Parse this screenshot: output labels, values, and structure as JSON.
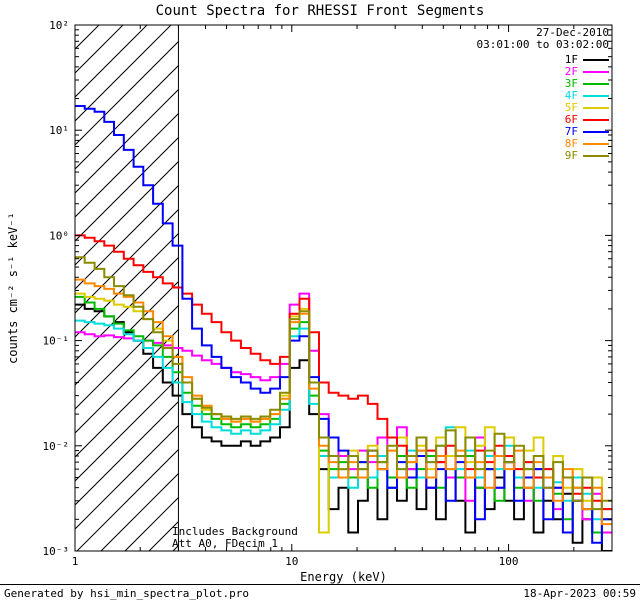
{
  "window": {
    "title": "Count Spectra for RHESSI Front Segments"
  },
  "header": {
    "date": "27-Dec-2010",
    "time_range": "03:01:00 to 03:02:00"
  },
  "annotations": {
    "background": "Includes Background",
    "attenuator": "Att A0, FDecim 1"
  },
  "footer": {
    "generator": "Generated by hsi_min_spectra_plot.pro",
    "timestamp": "18-Apr-2023 00:59"
  },
  "axes": {
    "xlabel": "Energy (keV)",
    "ylabel": "counts cm⁻² s⁻¹ keV⁻¹",
    "xticks": [
      {
        "value": 1,
        "label": "1"
      },
      {
        "value": 10,
        "label": "10"
      },
      {
        "value": 100,
        "label": "100"
      }
    ],
    "yticks": [
      {
        "value": 0.001,
        "label": "10⁻³"
      },
      {
        "value": 0.01,
        "label": "10⁻²"
      },
      {
        "value": 0.1,
        "label": "10⁻¹"
      },
      {
        "value": 1,
        "label": "10⁰"
      },
      {
        "value": 10,
        "label": "10¹"
      },
      {
        "value": 100,
        "label": "10²"
      }
    ]
  },
  "chart_data": {
    "type": "line",
    "subtype": "step-histogram",
    "scale": "log-log",
    "title": "Count Spectra for RHESSI Front Segments",
    "xlabel": "Energy (keV)",
    "ylabel": "counts cm⁻² s⁻¹ keV⁻¹",
    "xlim": [
      1,
      300
    ],
    "ylim": [
      0.001,
      100
    ],
    "grid": false,
    "legend_position": "top-right",
    "hatched_region_kev": [
      1,
      3
    ],
    "bin_edges_kev": [
      1.0,
      1.109,
      1.231,
      1.365,
      1.514,
      1.679,
      1.863,
      2.066,
      2.292,
      2.542,
      2.82,
      3.128,
      3.47,
      3.849,
      4.269,
      4.735,
      5.252,
      5.826,
      6.462,
      7.168,
      7.951,
      8.819,
      9.782,
      10.85,
      12.035,
      13.349,
      14.807,
      16.424,
      18.218,
      20.207,
      22.414,
      24.862,
      27.577,
      30.589,
      33.93,
      37.635,
      41.745,
      46.305,
      51.362,
      56.971,
      63.193,
      70.094,
      77.749,
      86.24,
      95.659,
      106.104,
      117.687,
      130.536,
      144.788,
      160.596,
      178.13,
      197.578,
      219.15,
      243.077,
      269.617,
      299.0
    ],
    "series": [
      {
        "name": "1F",
        "color": "#000000",
        "values": [
          0.22,
          0.2,
          0.19,
          0.17,
          0.15,
          0.12,
          0.1,
          0.075,
          0.055,
          0.04,
          0.03,
          0.02,
          0.015,
          0.012,
          0.011,
          0.01,
          0.01,
          0.011,
          0.01,
          0.011,
          0.012,
          0.015,
          0.055,
          0.065,
          0.02,
          0.006,
          0.0025,
          0.004,
          0.0015,
          0.003,
          0.005,
          0.002,
          0.004,
          0.003,
          0.006,
          0.0025,
          0.004,
          0.002,
          0.005,
          0.003,
          0.0015,
          0.004,
          0.0025,
          0.005,
          0.003,
          0.002,
          0.004,
          0.0015,
          0.003,
          0.002,
          0.0035,
          0.0012,
          0.002,
          0.0015,
          0.001
        ]
      },
      {
        "name": "2F",
        "color": "#ff00ff",
        "values": [
          0.12,
          0.115,
          0.11,
          0.112,
          0.108,
          0.105,
          0.1,
          0.1,
          0.095,
          0.09,
          0.085,
          0.08,
          0.072,
          0.065,
          0.06,
          0.055,
          0.05,
          0.048,
          0.045,
          0.042,
          0.045,
          0.06,
          0.22,
          0.28,
          0.08,
          0.02,
          0.012,
          0.008,
          0.006,
          0.009,
          0.007,
          0.012,
          0.005,
          0.015,
          0.006,
          0.009,
          0.004,
          0.007,
          0.005,
          0.008,
          0.003,
          0.012,
          0.006,
          0.004,
          0.007,
          0.005,
          0.003,
          0.006,
          0.004,
          0.0025,
          0.005,
          0.003,
          0.002,
          0.0035,
          0.0015
        ]
      },
      {
        "name": "3F",
        "color": "#00bb00",
        "values": [
          0.26,
          0.23,
          0.2,
          0.17,
          0.145,
          0.125,
          0.11,
          0.1,
          0.09,
          0.07,
          0.05,
          0.032,
          0.024,
          0.02,
          0.018,
          0.016,
          0.015,
          0.016,
          0.015,
          0.016,
          0.018,
          0.025,
          0.13,
          0.15,
          0.03,
          0.009,
          0.006,
          0.007,
          0.005,
          0.006,
          0.004,
          0.007,
          0.005,
          0.008,
          0.004,
          0.006,
          0.008,
          0.004,
          0.006,
          0.005,
          0.008,
          0.004,
          0.006,
          0.003,
          0.007,
          0.004,
          0.006,
          0.003,
          0.005,
          0.0035,
          0.002,
          0.004,
          0.0025,
          0.0015,
          0.002
        ]
      },
      {
        "name": "4F",
        "color": "#00dddd",
        "values": [
          0.155,
          0.15,
          0.145,
          0.14,
          0.13,
          0.115,
          0.1,
          0.085,
          0.07,
          0.055,
          0.04,
          0.026,
          0.02,
          0.017,
          0.015,
          0.014,
          0.013,
          0.014,
          0.013,
          0.014,
          0.016,
          0.022,
          0.11,
          0.13,
          0.025,
          0.008,
          0.005,
          0.006,
          0.004,
          0.007,
          0.005,
          0.008,
          0.004,
          0.006,
          0.009,
          0.005,
          0.007,
          0.01,
          0.015,
          0.006,
          0.009,
          0.005,
          0.008,
          0.006,
          0.01,
          0.005,
          0.007,
          0.004,
          0.006,
          0.0045,
          0.003,
          0.005,
          0.0035,
          0.002,
          0.0025
        ]
      },
      {
        "name": "5F",
        "color": "#ddcc00",
        "values": [
          0.28,
          0.26,
          0.25,
          0.24,
          0.22,
          0.21,
          0.19,
          0.16,
          0.13,
          0.1,
          0.07,
          0.04,
          0.028,
          0.022,
          0.02,
          0.018,
          0.017,
          0.018,
          0.017,
          0.018,
          0.02,
          0.03,
          0.17,
          0.2,
          0.04,
          0.0015,
          0.008,
          0.006,
          0.009,
          0.007,
          0.01,
          0.006,
          0.009,
          0.012,
          0.007,
          0.01,
          0.006,
          0.012,
          0.008,
          0.015,
          0.007,
          0.01,
          0.015,
          0.008,
          0.012,
          0.006,
          0.009,
          0.012,
          0.005,
          0.008,
          0.004,
          0.006,
          0.003,
          0.005,
          0.002
        ]
      },
      {
        "name": "6F",
        "color": "#ff0000",
        "values": [
          1.0,
          0.95,
          0.88,
          0.8,
          0.7,
          0.6,
          0.52,
          0.45,
          0.4,
          0.35,
          0.32,
          0.28,
          0.22,
          0.18,
          0.15,
          0.12,
          0.1,
          0.085,
          0.075,
          0.065,
          0.06,
          0.07,
          0.18,
          0.25,
          0.12,
          0.04,
          0.032,
          0.03,
          0.028,
          0.03,
          0.025,
          0.018,
          0.012,
          0.01,
          0.008,
          0.012,
          0.009,
          0.007,
          0.01,
          0.008,
          0.006,
          0.009,
          0.007,
          0.01,
          0.008,
          0.006,
          0.007,
          0.005,
          0.006,
          0.004,
          0.005,
          0.0035,
          0.004,
          0.003,
          0.0025
        ]
      },
      {
        "name": "7F",
        "color": "#0000ff",
        "values": [
          17,
          16,
          15,
          12,
          9,
          6.5,
          4.5,
          3.0,
          2.0,
          1.3,
          0.8,
          0.25,
          0.13,
          0.09,
          0.07,
          0.055,
          0.045,
          0.04,
          0.035,
          0.032,
          0.035,
          0.045,
          0.1,
          0.11,
          0.045,
          0.018,
          0.012,
          0.009,
          0.008,
          0.007,
          0.009,
          0.006,
          0.004,
          0.007,
          0.005,
          0.008,
          0.004,
          0.006,
          0.003,
          0.007,
          0.005,
          0.002,
          0.006,
          0.004,
          0.007,
          0.003,
          0.005,
          0.006,
          0.002,
          0.004,
          0.0015,
          0.003,
          0.0025,
          0.0012,
          0.002
        ]
      },
      {
        "name": "8F",
        "color": "#ff8800",
        "values": [
          0.38,
          0.35,
          0.33,
          0.31,
          0.28,
          0.26,
          0.23,
          0.19,
          0.15,
          0.11,
          0.07,
          0.045,
          0.03,
          0.024,
          0.02,
          0.018,
          0.017,
          0.018,
          0.017,
          0.018,
          0.02,
          0.028,
          0.15,
          0.18,
          0.035,
          0.01,
          0.007,
          0.005,
          0.007,
          0.005,
          0.008,
          0.006,
          0.009,
          0.005,
          0.007,
          0.009,
          0.005,
          0.008,
          0.006,
          0.009,
          0.005,
          0.007,
          0.004,
          0.008,
          0.006,
          0.009,
          0.004,
          0.007,
          0.005,
          0.003,
          0.006,
          0.004,
          0.0025,
          0.004,
          0.0018
        ]
      },
      {
        "name": "9F",
        "color": "#8b8b00",
        "values": [
          0.62,
          0.55,
          0.48,
          0.4,
          0.33,
          0.27,
          0.21,
          0.16,
          0.12,
          0.085,
          0.06,
          0.04,
          0.028,
          0.023,
          0.02,
          0.019,
          0.018,
          0.019,
          0.018,
          0.019,
          0.022,
          0.032,
          0.16,
          0.19,
          0.04,
          0.012,
          0.008,
          0.006,
          0.008,
          0.006,
          0.009,
          0.007,
          0.01,
          0.006,
          0.008,
          0.012,
          0.007,
          0.01,
          0.014,
          0.008,
          0.012,
          0.006,
          0.009,
          0.013,
          0.007,
          0.01,
          0.006,
          0.008,
          0.004,
          0.007,
          0.005,
          0.003,
          0.005,
          0.0025,
          0.003
        ]
      }
    ]
  }
}
